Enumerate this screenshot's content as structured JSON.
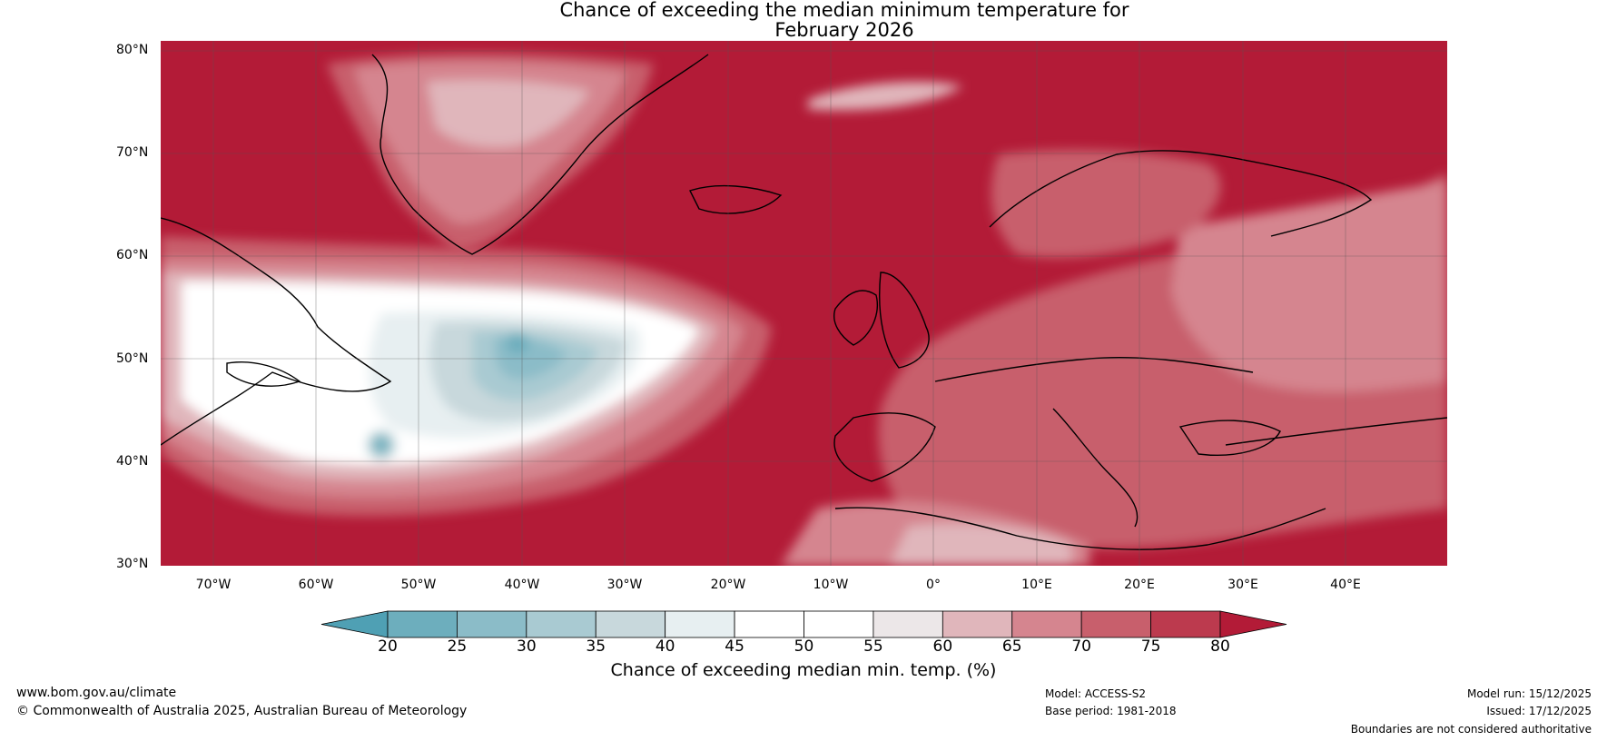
{
  "title": {
    "line1": "Chance of exceeding the median minimum temperature for",
    "line2": "February 2026"
  },
  "map": {
    "latitudes": [
      "80°N",
      "70°N",
      "60°N",
      "50°N",
      "40°N",
      "30°N"
    ],
    "longitudes": [
      "70°W",
      "60°W",
      "50°W",
      "40°W",
      "30°W",
      "20°W",
      "10°W",
      "0°",
      "10°E",
      "20°E",
      "30°E",
      "40°E"
    ],
    "region": "North Atlantic and Europe",
    "dominant_color": "#b31b37"
  },
  "colorbar": {
    "ticks": [
      "20",
      "25",
      "30",
      "35",
      "40",
      "45",
      "50",
      "55",
      "60",
      "65",
      "70",
      "75",
      "80"
    ],
    "colors": [
      "#4fa0b4",
      "#6daebd",
      "#8bbcc8",
      "#a9cad2",
      "#c8d8dc",
      "#e7eff1",
      "#ffffff",
      "#ffffff",
      "#ece7e8",
      "#e0b6bb",
      "#d5858f",
      "#c85f6c",
      "#bc3a4e",
      "#b31b37"
    ],
    "label": "Chance of exceeding median min. temp. (%)"
  },
  "footer": {
    "url": "www.bom.gov.au/climate",
    "copyright": "© Commonwealth of Australia 2025, Australian Bureau of Meteorology",
    "model": "Model: ACCESS-S2",
    "base_period": "Base period: 1981-2018",
    "model_run": "Model run: 15/12/2025",
    "issued": "Issued: 17/12/2025",
    "disclaimer": "Boundaries are not considered authoritative"
  }
}
